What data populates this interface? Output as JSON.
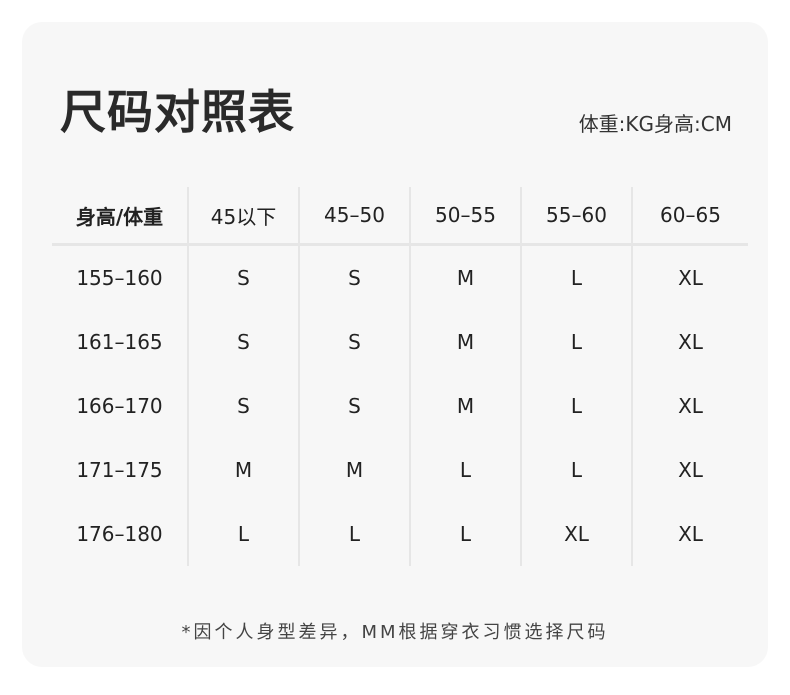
{
  "title": "尺码对照表",
  "unit_note": "体重:KG身高:CM",
  "table": {
    "headers": [
      "身高/体重",
      "45以下",
      "45–50",
      "50–55",
      "55–60",
      "60–65"
    ],
    "rows": [
      [
        "155–160",
        "S",
        "S",
        "M",
        "L",
        "XL"
      ],
      [
        "161–165",
        "S",
        "S",
        "M",
        "L",
        "XL"
      ],
      [
        "166–170",
        "S",
        "S",
        "M",
        "L",
        "XL"
      ],
      [
        "171–175",
        "M",
        "M",
        "L",
        "L",
        "XL"
      ],
      [
        "176–180",
        "L",
        "L",
        "L",
        "XL",
        "XL"
      ]
    ]
  },
  "footnote": "*因个人身型差异，MM根据穿衣习惯选择尺码"
}
